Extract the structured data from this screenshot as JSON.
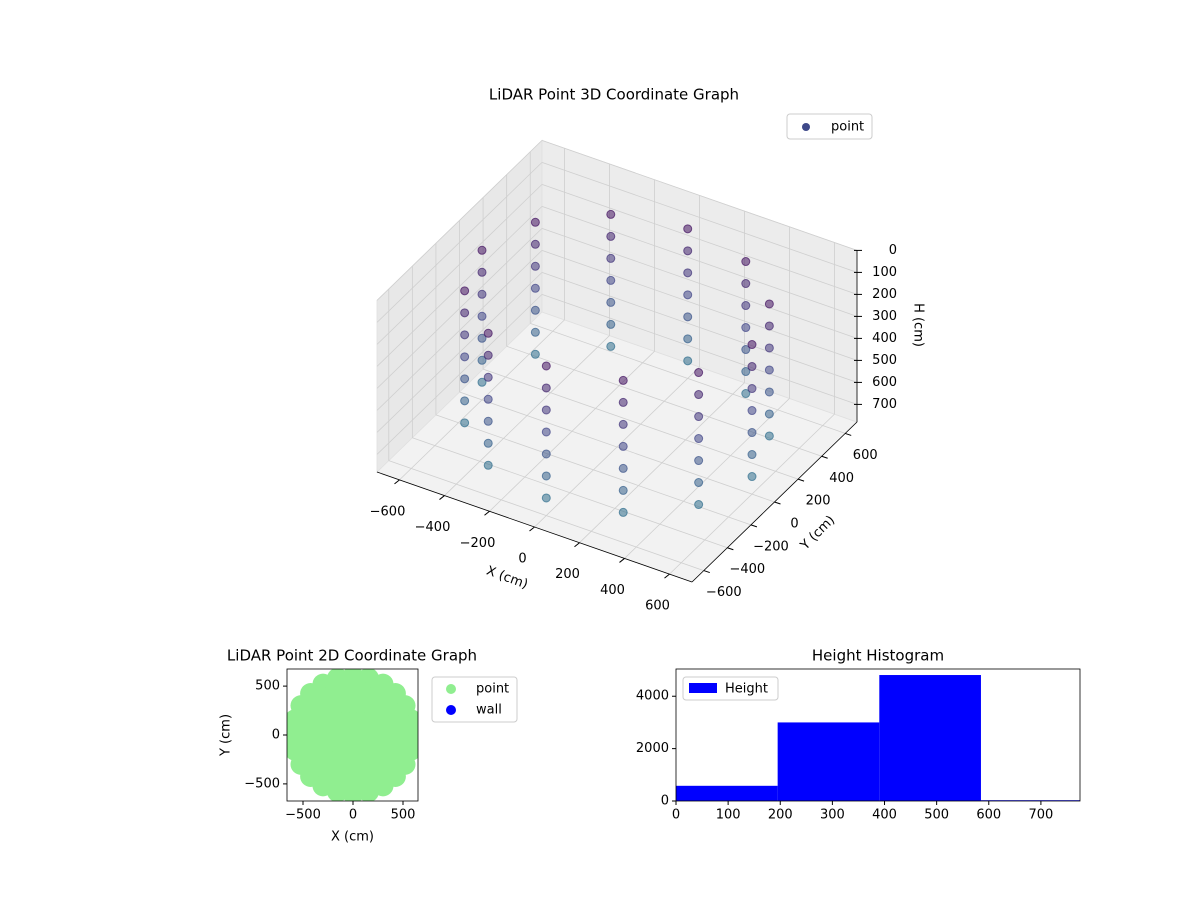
{
  "chart_data": [
    {
      "type": "scatter3d",
      "title": "LiDAR Point 3D Coordinate Graph",
      "xlabel": "X (cm)",
      "ylabel": "Y (cm)",
      "zlabel": "H (cm)",
      "xlim": [
        -700,
        700
      ],
      "ylim": [
        -700,
        700
      ],
      "zlim": [
        0,
        780
      ],
      "zinvert": true,
      "grid": true,
      "legend": "upper right",
      "xticks": [
        {
          "value": -600,
          "label": "−600"
        },
        {
          "value": -400,
          "label": "−400"
        },
        {
          "value": -200,
          "label": "−200"
        },
        0,
        200,
        400,
        600
      ],
      "yticks": [
        {
          "value": -600,
          "label": "−600"
        },
        {
          "value": -400,
          "label": "−400"
        },
        {
          "value": -200,
          "label": "−200"
        },
        0,
        200,
        400,
        600
      ],
      "zticks": [
        0,
        100,
        200,
        300,
        400,
        500,
        600,
        700
      ],
      "series": [
        {
          "name": "point",
          "color": "#3e4989",
          "cmap": "viridis",
          "x": [
            600,
            520,
            300,
            0,
            -300,
            -520,
            -600,
            -520,
            -300,
            0,
            300,
            520,
            600,
            520,
            300,
            0,
            -300,
            -520,
            -600,
            -520,
            -300,
            0,
            300,
            520,
            600,
            520,
            300,
            0,
            -300,
            -520,
            -600,
            -520,
            -300,
            0,
            300,
            520,
            600,
            520,
            300,
            0,
            -300,
            -520,
            -600,
            -520,
            -300,
            0,
            300,
            520,
            600,
            520,
            300,
            0,
            -300,
            -520,
            -600,
            -520,
            -300,
            0,
            300,
            520,
            600,
            520,
            300,
            0,
            -300,
            -520,
            -600,
            -520,
            -300,
            0,
            300,
            520,
            600,
            520,
            300,
            0,
            -300,
            -520,
            -600,
            -520,
            -300,
            0,
            300,
            520
          ],
          "y": [
            0,
            300,
            520,
            600,
            520,
            300,
            0,
            -300,
            -520,
            -600,
            -520,
            -300,
            0,
            300,
            520,
            600,
            520,
            300,
            0,
            -300,
            -520,
            -600,
            -520,
            -300,
            0,
            300,
            520,
            600,
            520,
            300,
            0,
            -300,
            -520,
            -600,
            -520,
            -300,
            0,
            300,
            520,
            600,
            520,
            300,
            0,
            -300,
            -520,
            -600,
            -520,
            -300,
            0,
            300,
            520,
            600,
            520,
            300,
            0,
            -300,
            -520,
            -600,
            -520,
            -300,
            0,
            300,
            520,
            600,
            520,
            300,
            0,
            -300,
            -520,
            -600,
            -520,
            -300,
            0,
            300,
            520,
            600,
            520,
            300,
            0,
            -300,
            -520,
            -600,
            -520,
            -300
          ],
          "z": [
            100,
            100,
            100,
            100,
            100,
            100,
            100,
            100,
            100,
            100,
            100,
            100,
            200,
            200,
            200,
            200,
            200,
            200,
            200,
            200,
            200,
            200,
            200,
            200,
            300,
            300,
            300,
            300,
            300,
            300,
            300,
            300,
            300,
            300,
            300,
            300,
            400,
            400,
            400,
            400,
            400,
            400,
            400,
            400,
            400,
            400,
            400,
            400,
            500,
            500,
            500,
            500,
            500,
            500,
            500,
            500,
            500,
            500,
            500,
            500,
            600,
            600,
            600,
            600,
            600,
            600,
            600,
            600,
            600,
            600,
            600,
            600,
            700,
            700,
            700,
            700,
            700,
            700,
            700,
            700,
            700,
            700,
            700,
            700
          ]
        }
      ]
    },
    {
      "type": "scatter",
      "title": "LiDAR Point 2D Coordinate Graph",
      "xlabel": "X (cm)",
      "ylabel": "Y (cm)",
      "xlim": [
        -660,
        650
      ],
      "ylim": [
        -675,
        675
      ],
      "legend": "outside right",
      "xticks": [
        {
          "value": -500,
          "label": "−500"
        },
        0,
        500
      ],
      "yticks": [
        {
          "value": -500,
          "label": "−500"
        },
        0,
        500
      ],
      "series": [
        {
          "name": "point",
          "color": "#90ee90",
          "x": [
            600,
            580,
            520,
            424,
            300,
            155,
            0,
            -155,
            -300,
            -424,
            -520,
            -580,
            -600,
            -580,
            -520,
            -424,
            -300,
            -155,
            0,
            155,
            300,
            424,
            520,
            580,
            450,
            423,
            345,
            225,
            78,
            -78,
            -225,
            -345,
            -423,
            -450,
            -423,
            -345,
            -225,
            -78,
            78,
            225,
            345,
            423,
            300,
            260,
            150,
            0,
            -150,
            -260,
            -300,
            -260,
            -150,
            0,
            150,
            260,
            150,
            75,
            -75,
            -150,
            -75,
            75,
            0
          ],
          "y": [
            0,
            155,
            300,
            424,
            520,
            580,
            600,
            580,
            520,
            424,
            300,
            155,
            0,
            -155,
            -300,
            -424,
            -520,
            -580,
            -600,
            -580,
            -520,
            -424,
            -300,
            -155,
            0,
            154,
            289,
            390,
            443,
            443,
            390,
            289,
            154,
            0,
            -154,
            -289,
            -390,
            -443,
            -443,
            -390,
            -289,
            -154,
            0,
            150,
            260,
            300,
            260,
            150,
            0,
            -150,
            -260,
            -300,
            -260,
            -150,
            0,
            130,
            130,
            0,
            -130,
            -130,
            0
          ]
        },
        {
          "name": "wall",
          "color": "#0000ff",
          "x": [],
          "y": []
        }
      ]
    },
    {
      "type": "histogram",
      "title": "Height Histogram",
      "legend": "upper left",
      "bins": [
        0,
        195,
        390,
        585,
        780
      ],
      "xlim": [
        0,
        775
      ],
      "ylim": [
        0,
        5040
      ],
      "xticks": [
        0,
        100,
        200,
        300,
        400,
        500,
        600,
        700
      ],
      "yticks": [
        0,
        2000,
        4000
      ],
      "series": [
        {
          "name": "Height",
          "color": "#0000ff",
          "values": [
            580,
            3000,
            4810,
            30
          ]
        }
      ]
    }
  ]
}
